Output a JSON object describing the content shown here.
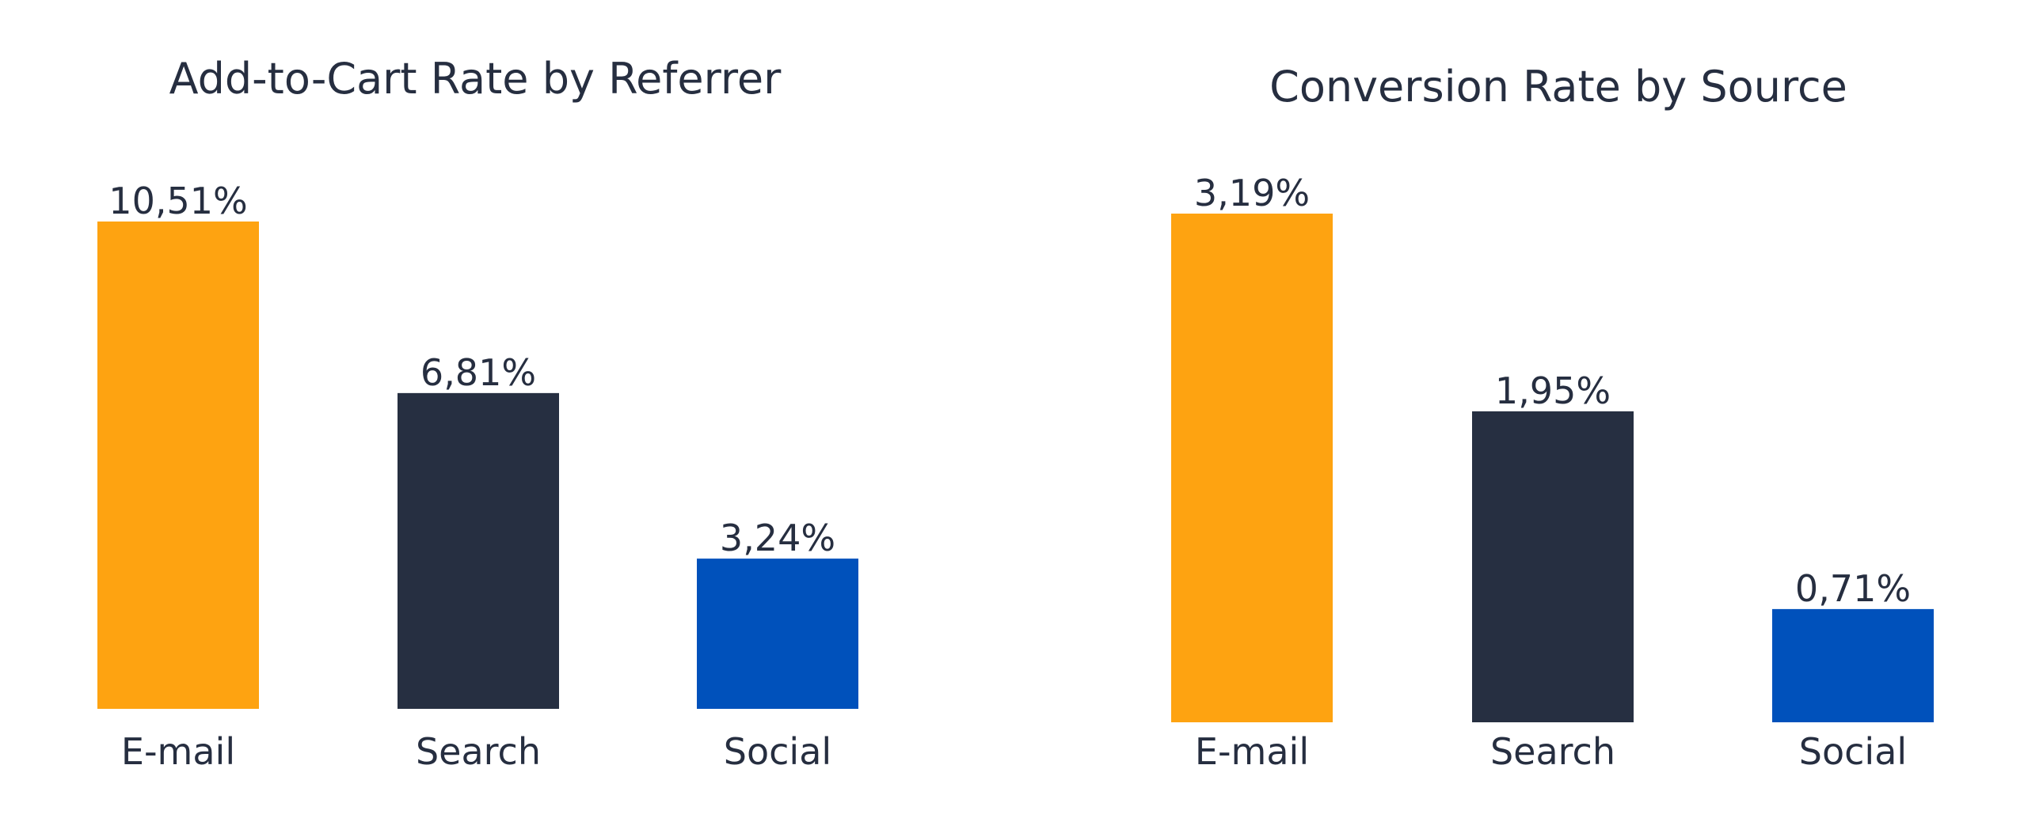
{
  "colors": {
    "text": "#262e40",
    "email": "#fea311",
    "search": "#262f41",
    "social": "#0051bb"
  },
  "chart_data": [
    {
      "type": "bar",
      "title": "Add-to-Cart Rate by Referrer",
      "categories": [
        "E-mail",
        "Search",
        "Social"
      ],
      "values": [
        10.51,
        6.81,
        3.24
      ],
      "value_labels": [
        "10,51%",
        "6,81%",
        "3,24%"
      ],
      "bar_colors": [
        "#fea311",
        "#262f41",
        "#0051bb"
      ],
      "xlabel": "",
      "ylabel": "",
      "ylim": [
        0,
        10.51
      ],
      "grid": false,
      "legend": "none"
    },
    {
      "type": "bar",
      "title": "Conversion Rate by Source",
      "categories": [
        "E-mail",
        "Search",
        "Social"
      ],
      "values": [
        3.19,
        1.95,
        0.71
      ],
      "value_labels": [
        "3,19%",
        "1,95%",
        "0,71%"
      ],
      "bar_colors": [
        "#fea311",
        "#262f41",
        "#0051bb"
      ],
      "xlabel": "",
      "ylabel": "",
      "ylim": [
        0,
        3.19
      ],
      "grid": false,
      "legend": "none"
    }
  ]
}
